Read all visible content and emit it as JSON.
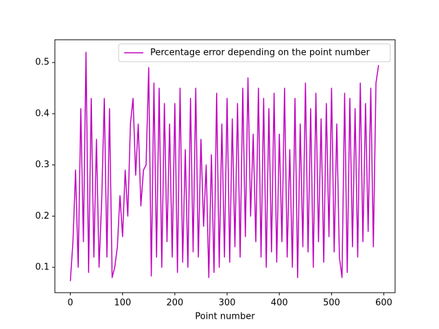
{
  "chart_data": {
    "type": "line",
    "xlabel": "Point number",
    "series": [
      {
        "name": "Percentage error depending on the point number",
        "color": "#bf00bf",
        "x": [
          0,
          5,
          10,
          15,
          20,
          25,
          30,
          35,
          40,
          45,
          50,
          55,
          60,
          65,
          70,
          75,
          80,
          85,
          90,
          95,
          100,
          105,
          110,
          115,
          120,
          125,
          130,
          135,
          140,
          145,
          150,
          155,
          160,
          165,
          170,
          175,
          180,
          185,
          190,
          195,
          200,
          205,
          210,
          215,
          220,
          225,
          230,
          235,
          240,
          245,
          250,
          255,
          260,
          265,
          270,
          275,
          280,
          285,
          290,
          295,
          300,
          305,
          310,
          315,
          320,
          325,
          330,
          335,
          340,
          345,
          350,
          355,
          360,
          365,
          370,
          375,
          380,
          385,
          390,
          395,
          400,
          405,
          410,
          415,
          420,
          425,
          430,
          435,
          440,
          445,
          450,
          455,
          460,
          465,
          470,
          475,
          480,
          485,
          490,
          495,
          500,
          505,
          510,
          515,
          520,
          525,
          530,
          535,
          540,
          545,
          550,
          555,
          560,
          565,
          570,
          575,
          580,
          585,
          590
        ],
        "values": [
          0.073,
          0.15,
          0.29,
          0.1,
          0.41,
          0.15,
          0.52,
          0.09,
          0.43,
          0.12,
          0.35,
          0.1,
          0.23,
          0.43,
          0.12,
          0.41,
          0.08,
          0.1,
          0.14,
          0.24,
          0.16,
          0.29,
          0.2,
          0.38,
          0.43,
          0.28,
          0.38,
          0.22,
          0.29,
          0.3,
          0.49,
          0.083,
          0.46,
          0.12,
          0.45,
          0.1,
          0.42,
          0.15,
          0.38,
          0.12,
          0.42,
          0.09,
          0.45,
          0.11,
          0.33,
          0.1,
          0.43,
          0.13,
          0.45,
          0.12,
          0.35,
          0.18,
          0.3,
          0.08,
          0.32,
          0.09,
          0.44,
          0.1,
          0.38,
          0.12,
          0.43,
          0.11,
          0.39,
          0.14,
          0.42,
          0.12,
          0.45,
          0.16,
          0.47,
          0.2,
          0.36,
          0.15,
          0.45,
          0.12,
          0.43,
          0.1,
          0.41,
          0.13,
          0.44,
          0.11,
          0.36,
          0.15,
          0.45,
          0.12,
          0.33,
          0.1,
          0.43,
          0.08,
          0.38,
          0.14,
          0.46,
          0.13,
          0.41,
          0.1,
          0.44,
          0.15,
          0.39,
          0.11,
          0.42,
          0.16,
          0.45,
          0.13,
          0.38,
          0.12,
          0.08,
          0.44,
          0.09,
          0.43,
          0.14,
          0.41,
          0.12,
          0.46,
          0.15,
          0.42,
          0.17,
          0.45,
          0.14,
          0.46,
          0.495
        ]
      }
    ],
    "xlim": [
      -29.6,
      621.6
    ],
    "xticks": [
      0,
      100,
      200,
      300,
      400,
      500,
      600
    ],
    "ylim": [
      0.0505,
      0.5445
    ],
    "yticks": [
      0.1,
      0.2,
      0.3,
      0.4,
      0.5
    ],
    "legend": "upper right"
  }
}
